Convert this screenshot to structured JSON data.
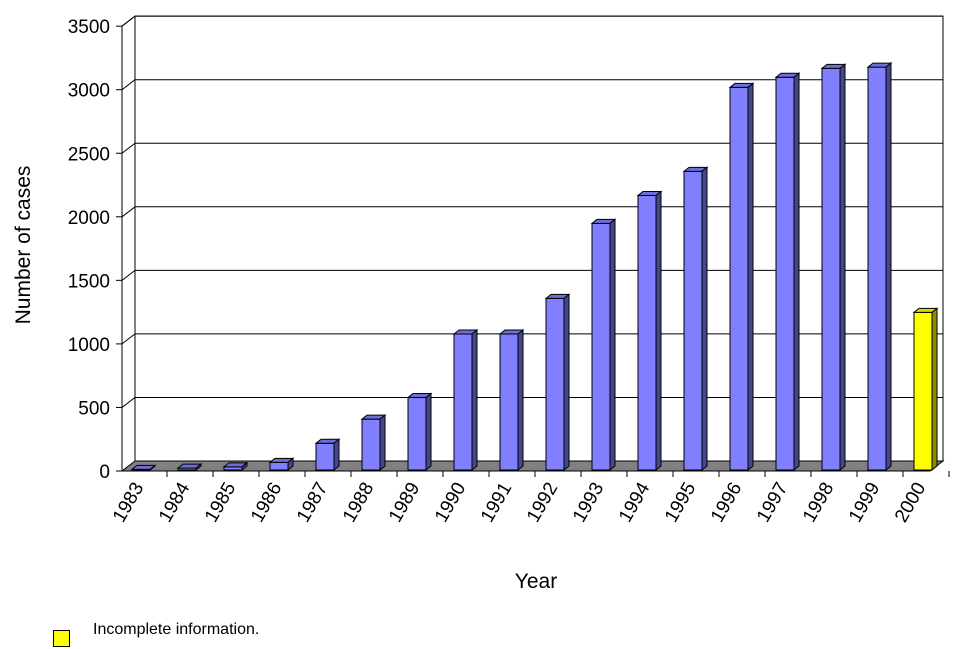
{
  "chart_data": {
    "type": "bar",
    "title": "",
    "xlabel": "Year",
    "ylabel": "Number of cases",
    "categories": [
      "1983",
      "1984",
      "1985",
      "1986",
      "1987",
      "1988",
      "1989",
      "1990",
      "1991",
      "1992",
      "1993",
      "1994",
      "1995",
      "1996",
      "1997",
      "1998",
      "1999",
      "2000"
    ],
    "values": [
      5,
      15,
      25,
      60,
      210,
      400,
      570,
      1070,
      1070,
      1350,
      1940,
      2160,
      2350,
      3010,
      3090,
      3160,
      3170,
      1240
    ],
    "ylim": [
      0,
      3500
    ],
    "yticks": [
      0,
      500,
      1000,
      1500,
      2000,
      2500,
      3000,
      3500
    ],
    "grid": true,
    "colors": {
      "bar": "#8080ff",
      "highlight": "#ffff00",
      "floor": "#808080"
    },
    "highlighted_categories": [
      "2000"
    ],
    "legend": {
      "label": "Incomplete information.",
      "color": "#ffff00",
      "placement": "bottom-left"
    }
  }
}
